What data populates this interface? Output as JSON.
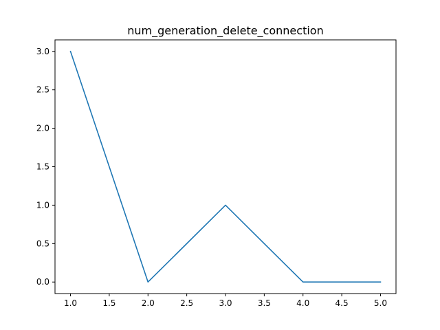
{
  "chart_data": {
    "type": "line",
    "title": "num_generation_delete_connection",
    "xlabel": "",
    "ylabel": "",
    "x": [
      1.0,
      2.0,
      3.0,
      4.0,
      5.0
    ],
    "series": [
      {
        "values": [
          3.0,
          0.0,
          1.0,
          0.0,
          0.0
        ],
        "color": "#1f77b4"
      }
    ],
    "xlim": [
      0.8,
      5.2
    ],
    "ylim": [
      -0.15,
      3.15
    ],
    "xticks": [
      1.0,
      1.5,
      2.0,
      2.5,
      3.0,
      3.5,
      4.0,
      4.5,
      5.0
    ],
    "xtick_labels": [
      "1.0",
      "1.5",
      "2.0",
      "2.5",
      "3.0",
      "3.5",
      "4.0",
      "4.5",
      "5.0"
    ],
    "yticks": [
      0.0,
      0.5,
      1.0,
      1.5,
      2.0,
      2.5,
      3.0
    ],
    "ytick_labels": [
      "0.0",
      "0.5",
      "1.0",
      "1.5",
      "2.0",
      "2.5",
      "3.0"
    ],
    "grid": false,
    "legend": "none"
  }
}
